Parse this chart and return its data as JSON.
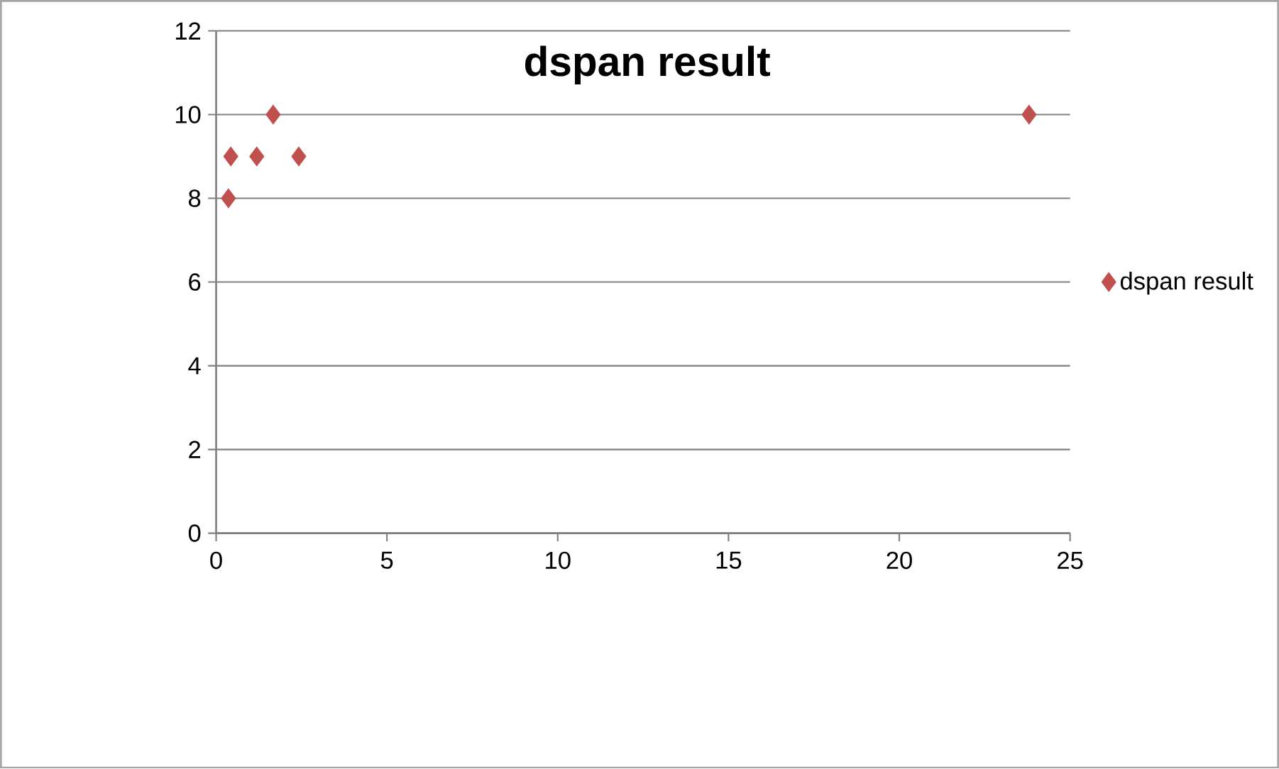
{
  "chart_data": {
    "type": "scatter",
    "title": "dspan result",
    "series": [
      {
        "name": "dspan result",
        "color": "#c0504d",
        "x": [
          0.36,
          0.43,
          1.19,
          1.67,
          2.42,
          23.8
        ],
        "values": [
          8,
          9,
          9,
          10,
          9,
          10
        ]
      }
    ],
    "xlim": [
      0,
      25
    ],
    "xticks": [
      0,
      5,
      10,
      15,
      20,
      25
    ],
    "ylim": [
      0,
      12
    ],
    "yticks": [
      0,
      2,
      4,
      6,
      8,
      10,
      12
    ],
    "grid": "y",
    "legend": "right",
    "marker": "diamond"
  }
}
